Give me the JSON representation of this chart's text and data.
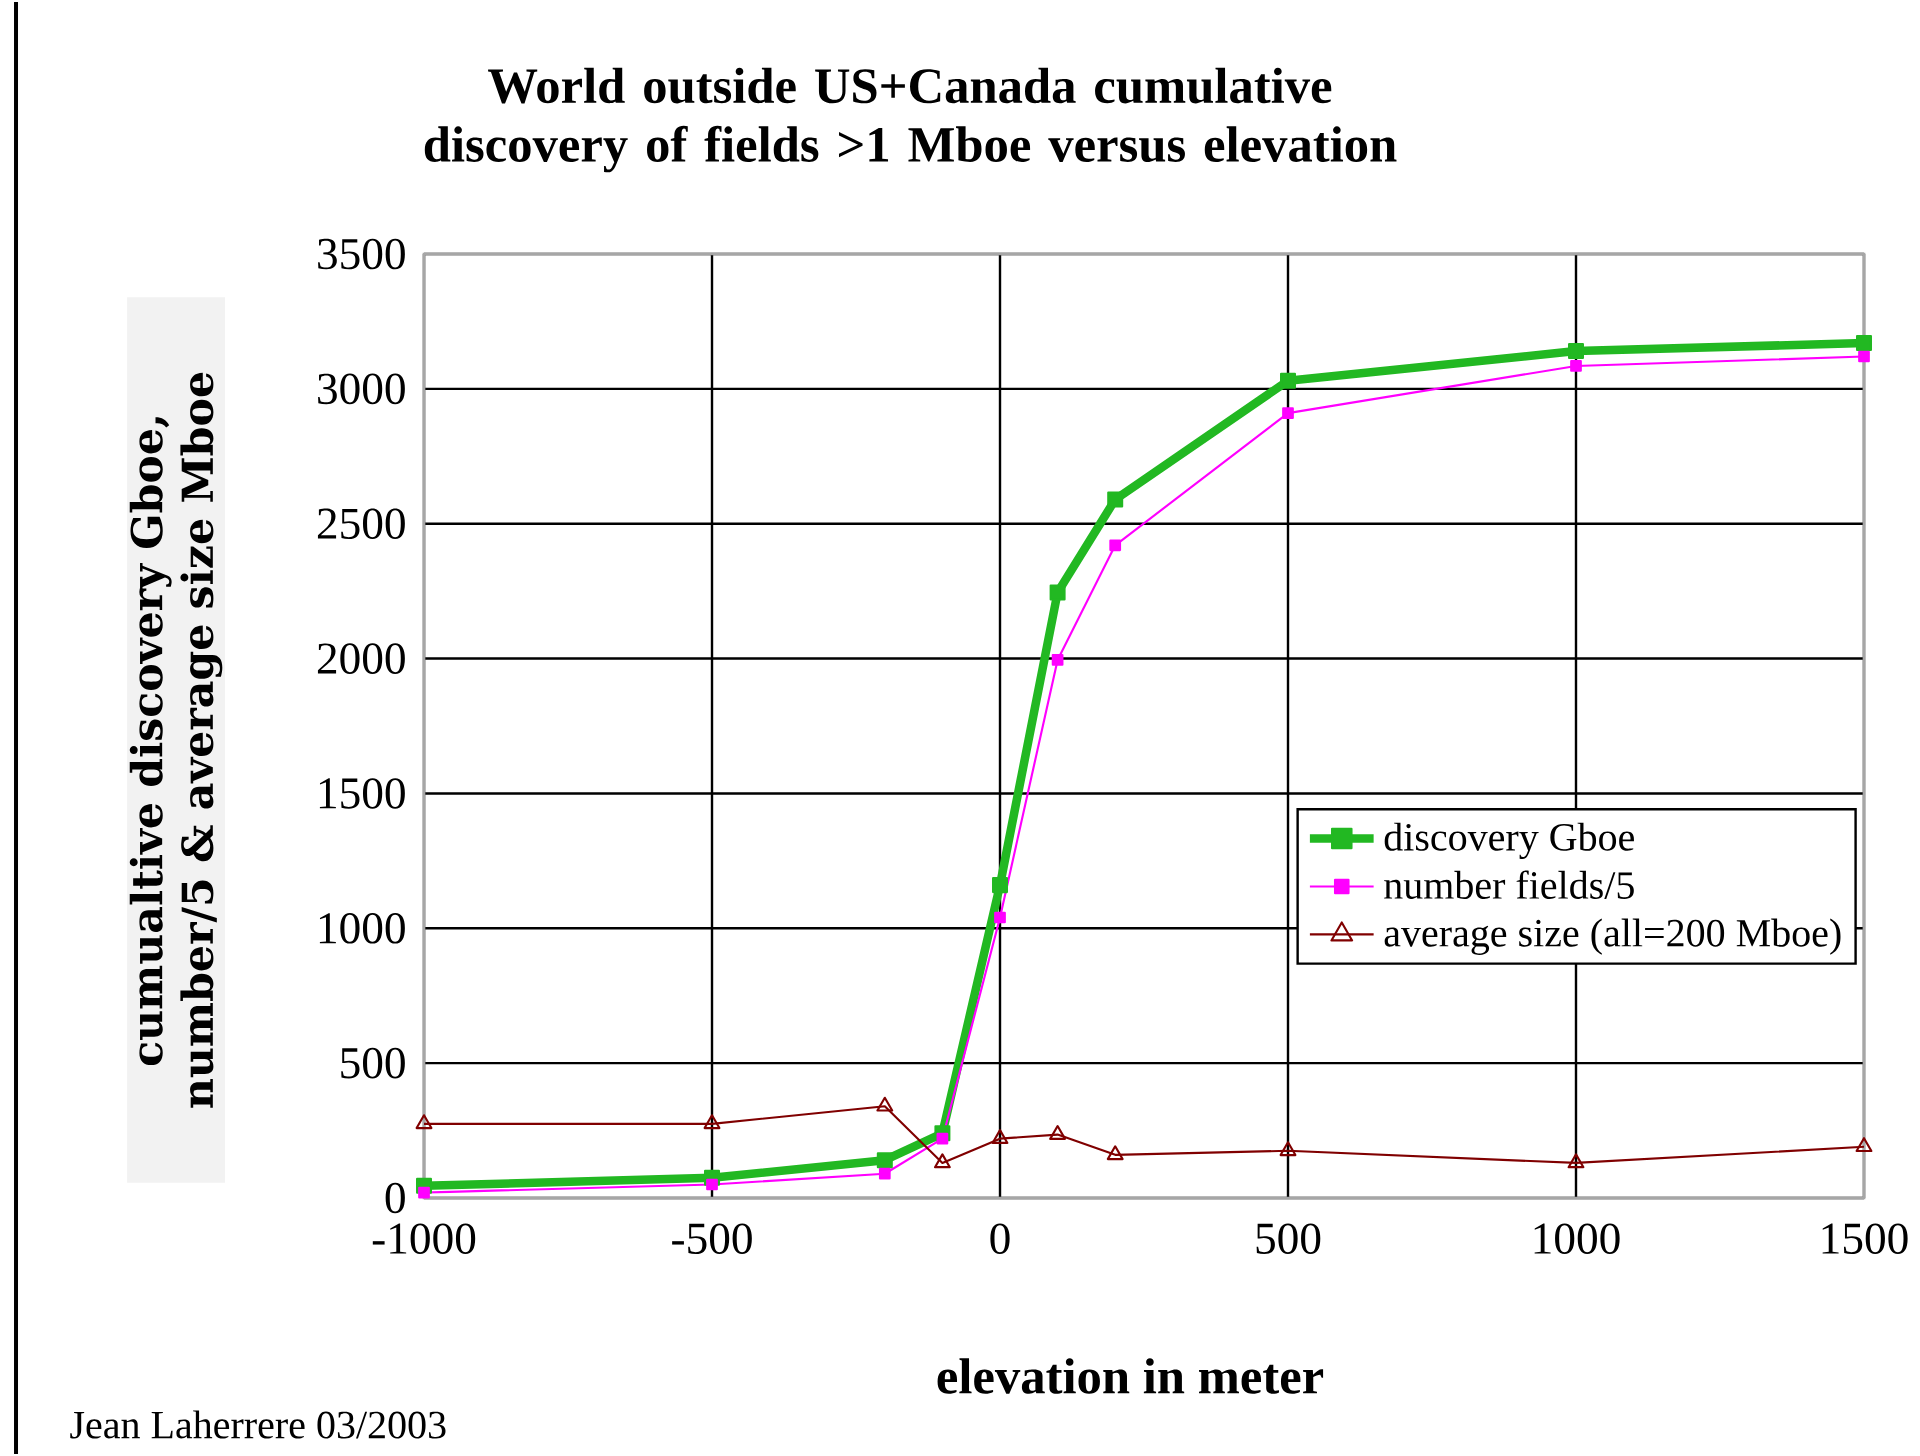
{
  "chart_data": {
    "type": "line",
    "title": "World outside US+Canada cumulative discovery of fields >1 Mboe versus elevation",
    "xlabel": "elevation in meter",
    "ylabel": "cumualtive discovery Gboe, number/5 & average size Mboe",
    "annotations": [
      "Jean Laherrere 03/2003"
    ],
    "x": [
      -1000,
      -500,
      -200,
      -100,
      0,
      100,
      200,
      500,
      1000,
      1500
    ],
    "series": [
      {
        "name": "discovery Gboe",
        "color": "#22b822",
        "marker": "square",
        "values": [
          45,
          75,
          140,
          240,
          1160,
          2245,
          2590,
          3030,
          3140,
          3170
        ]
      },
      {
        "name": "number fields/5",
        "color": "#ff00ff",
        "marker": "square",
        "values": [
          20,
          50,
          90,
          220,
          1040,
          1995,
          2420,
          2910,
          3085,
          3120
        ]
      },
      {
        "name": "average size (all=200 Mboe)",
        "color": "#800000",
        "marker": "triangle",
        "values": [
          275,
          275,
          340,
          130,
          220,
          235,
          160,
          175,
          130,
          190
        ]
      }
    ],
    "xlim": [
      -1000,
      1500
    ],
    "ylim": [
      0,
      3500
    ],
    "xticks": [
      -1000,
      -500,
      0,
      500,
      1000,
      1500
    ],
    "yticks": [
      0,
      500,
      1000,
      1500,
      2000,
      2500,
      3000,
      3500
    ],
    "grid": true,
    "legend": "right"
  }
}
